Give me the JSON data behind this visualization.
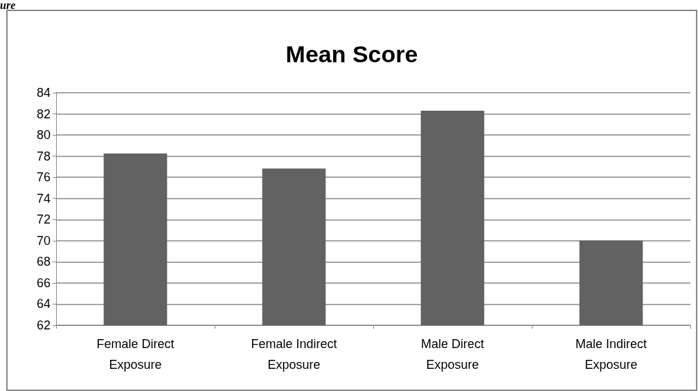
{
  "chart_data": {
    "type": "bar",
    "title": "Mean Score",
    "annotations": [
      "ure"
    ],
    "categories": [
      "Female Direct\nExposure",
      "Female Indirect\nExposure",
      "Male Direct\nExposure",
      "Male Indirect\nExposure"
    ],
    "values": [
      78.25,
      76.83,
      82.3,
      70.0
    ],
    "color": "#626262",
    "ylim": [
      62,
      84
    ],
    "yticks": [
      62,
      64,
      66,
      68,
      70,
      72,
      74,
      76,
      78,
      80,
      82,
      84
    ],
    "grid": "y"
  }
}
